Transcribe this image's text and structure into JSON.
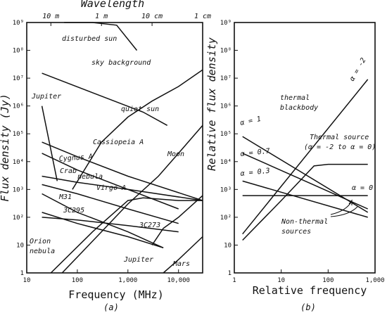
{
  "chart_data": [
    {
      "panel_label": "(a)",
      "type": "line",
      "top_axis_title": "Wavelength",
      "xlabel": "Frequency (MHz)",
      "ylabel": "Flux density (Jy)",
      "x_scale": "log",
      "y_scale": "log",
      "xlim": [
        10,
        30000
      ],
      "ylim": [
        1,
        1000000000
      ],
      "x_tick_values": [
        10,
        100,
        1000,
        10000
      ],
      "x_tick_labels": [
        "10",
        "100",
        "1,000",
        "10,000"
      ],
      "y_tick_values": [
        1,
        10,
        100,
        1000,
        10000,
        100000,
        1000000,
        10000000,
        100000000,
        1000000000
      ],
      "y_tick_labels": [
        "1",
        "10",
        "10²",
        "10³",
        "10⁴",
        "10⁵",
        "10⁶",
        "10⁷",
        "10⁸",
        "10⁹"
      ],
      "top_tick_values": [
        30,
        300,
        3000,
        30000
      ],
      "top_tick_labels": [
        "10 m",
        "1 m",
        "10 cm",
        "1 cm"
      ],
      "series": [
        {
          "name": "disturbed sun",
          "x": [
            55,
            200,
            600,
            1500
          ],
          "y": [
            1000000000,
            2000000000,
            800000000,
            100000000
          ]
        },
        {
          "name": "sky background",
          "x": [
            20,
            200,
            2000,
            6000
          ],
          "y": [
            15000000,
            3000000,
            600000,
            200000
          ]
        },
        {
          "name": "quiet sun",
          "x": [
            80,
            300,
            1000,
            3000,
            10000,
            30000
          ],
          "y": [
            1000,
            50000,
            400000,
            1500000,
            5000000,
            20000000
          ]
        },
        {
          "name": "Jupiter",
          "x": [
            20,
            40
          ],
          "y": [
            1000000,
            2000
          ]
        },
        {
          "name": "Cassiopeia A",
          "x": [
            20,
            100,
            1000,
            30000
          ],
          "y": [
            50000,
            15000,
            3000,
            400
          ]
        },
        {
          "name": "Cygnus A",
          "x": [
            20,
            100,
            1000,
            10000
          ],
          "y": [
            20000,
            5000,
            1000,
            200
          ]
        },
        {
          "name": "Crab nebula",
          "x": [
            20,
            100,
            1000,
            30000
          ],
          "y": [
            3000,
            1800,
            1000,
            400
          ]
        },
        {
          "name": "Virgo A",
          "x": [
            20,
            100,
            1000,
            10000
          ],
          "y": [
            1500,
            700,
            200,
            60
          ]
        },
        {
          "name": "M31",
          "x": [
            20,
            100,
            1000,
            5000
          ],
          "y": [
            700,
            150,
            30,
            8
          ]
        },
        {
          "name": "3C295",
          "x": [
            20,
            100,
            1000,
            5000
          ],
          "y": [
            150,
            60,
            20,
            8
          ]
        },
        {
          "name": "3C273",
          "x": [
            20,
            100,
            1000,
            10000
          ],
          "y": [
            100,
            80,
            50,
            30
          ]
        },
        {
          "name": "Moon",
          "x": [
            50,
            300,
            1000,
            4000,
            10000,
            30000
          ],
          "y": [
            1,
            30,
            300,
            3000,
            20000,
            200000
          ]
        },
        {
          "name": "Orion nebula",
          "x": [
            30,
            200,
            1000,
            2000,
            10000,
            30000
          ],
          "y": [
            1,
            30,
            400,
            500,
            400,
            400
          ]
        },
        {
          "name": "Jupiter (thermal)",
          "x": [
            3000,
            5000,
            10000,
            30000
          ],
          "y": [
            10,
            40,
            100,
            600
          ]
        },
        {
          "name": "Mars",
          "x": [
            5000,
            10000,
            30000
          ],
          "y": [
            1,
            3,
            20
          ]
        }
      ],
      "annotations": [
        "disturbed sun",
        "sky background",
        "Jupiter",
        "quiet sun",
        "Cassiopeia A",
        "Cygnus A",
        "Crab",
        "nebula",
        "Moon",
        "Virgo A",
        "M31",
        "3C295",
        "3C273",
        "Orion",
        "nebula",
        "Jupiter",
        "Mars"
      ]
    },
    {
      "panel_label": "(b)",
      "type": "line",
      "xlabel": "Relative frequency",
      "ylabel": "Relative flux density",
      "x_scale": "log",
      "y_scale": "log",
      "xlim": [
        1,
        1000
      ],
      "ylim": [
        1,
        1000000000
      ],
      "x_tick_values": [
        1,
        10,
        100,
        1000
      ],
      "x_tick_labels": [
        "1",
        "10",
        "100",
        "1,000"
      ],
      "y_tick_values": [
        1,
        10,
        100,
        1000,
        10000,
        100000,
        1000000,
        10000000,
        100000000,
        1000000000
      ],
      "y_tick_labels": [
        "1",
        "10",
        "10²",
        "10³",
        "10⁴",
        "10⁵",
        "10⁶",
        "10⁷",
        "10⁸",
        "10⁹"
      ],
      "series": [
        {
          "name": "α = -2",
          "x": [
            1.5,
            700
          ],
          "y": [
            25,
            9000000
          ]
        },
        {
          "name": "α = 1",
          "x": [
            1.5,
            700
          ],
          "y": [
            80000,
            150
          ]
        },
        {
          "name": "α = 0.7",
          "x": [
            1.5,
            700
          ],
          "y": [
            20000,
            200
          ]
        },
        {
          "name": "α = 0.3",
          "x": [
            1.5,
            700
          ],
          "y": [
            2000,
            100
          ]
        },
        {
          "name": "α = 0",
          "x": [
            1.5,
            700
          ],
          "y": [
            600,
            600
          ]
        },
        {
          "name": "Thermal source",
          "x": [
            1.5,
            10,
            50,
            100,
            200,
            700
          ],
          "y": [
            15,
            400,
            7000,
            8000,
            8000,
            8000
          ]
        }
      ],
      "annotations": [
        "thermal",
        "blackbody",
        "Thermal source",
        "(α = -2 to α = 0)",
        "α = -2",
        "α = 1",
        "α = 0.7",
        "α = 0.3",
        "α = 0",
        "Non-thermal",
        "sources"
      ]
    }
  ]
}
